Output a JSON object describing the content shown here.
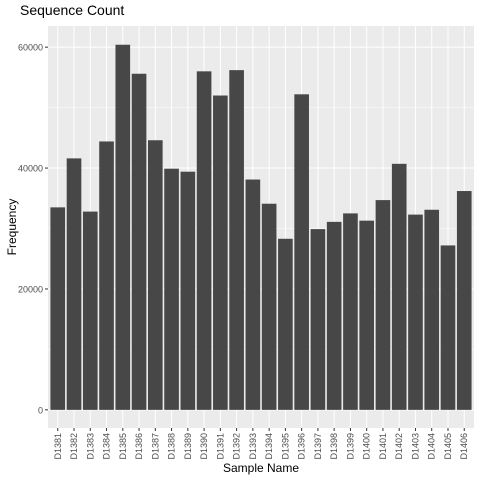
{
  "chart_data": {
    "type": "bar",
    "title": "Sequence Count",
    "xlabel": "Sample Name",
    "ylabel": "Frequency",
    "categories": [
      "D1381",
      "D1382",
      "D1383",
      "D1384",
      "D1385",
      "D1386",
      "D1387",
      "D1388",
      "D1389",
      "D1390",
      "D1391",
      "D1392",
      "D1393",
      "D1394",
      "D1395",
      "D1396",
      "D1397",
      "D1398",
      "D1399",
      "D1400",
      "D1401",
      "D1402",
      "D1403",
      "D1404",
      "D1405",
      "D1406"
    ],
    "values": [
      33500,
      41600,
      32800,
      44400,
      60400,
      55600,
      44600,
      39900,
      39400,
      56000,
      52000,
      56200,
      38100,
      34100,
      28300,
      52200,
      29900,
      31100,
      32500,
      31300,
      34700,
      40700,
      32300,
      33100,
      27200,
      36200
    ],
    "ylim": [
      -3000,
      63500
    ],
    "yticks": [
      0,
      20000,
      40000,
      60000
    ],
    "grid": true,
    "colors": {
      "bar": "#474747",
      "panel": "#ebebeb",
      "grid": "#ffffff",
      "axis_text": "#4d4d4d"
    }
  }
}
